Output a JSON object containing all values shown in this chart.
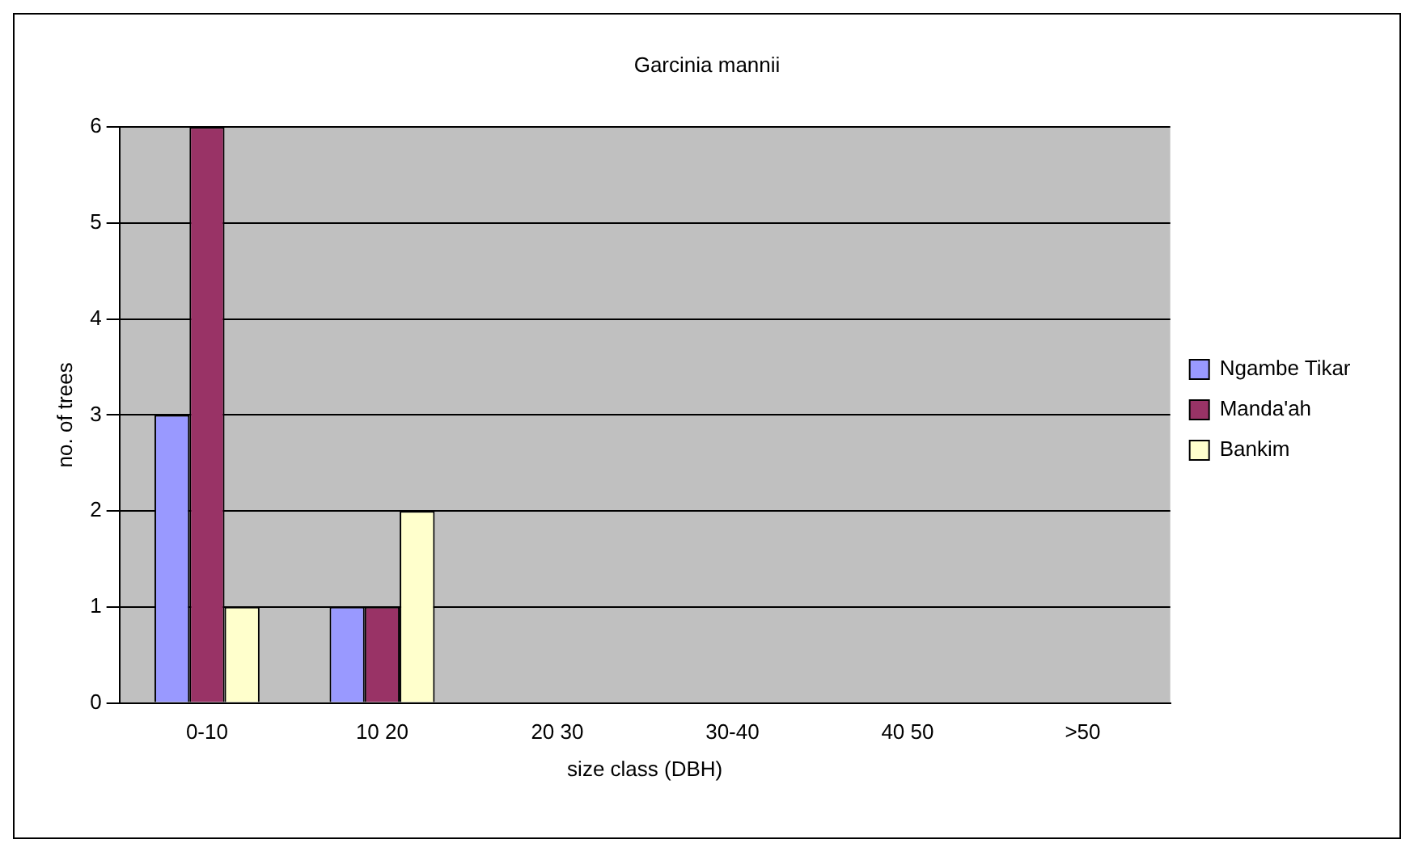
{
  "chart_data": {
    "type": "bar",
    "title": "Garcinia mannii",
    "xlabel": "size class (DBH)",
    "ylabel": "no. of trees",
    "categories": [
      "0-10",
      "10 20",
      "20 30",
      "30-40",
      "40 50",
      ">50"
    ],
    "series": [
      {
        "name": "Ngambe Tikar",
        "color": "#9999ff",
        "values": [
          3,
          1,
          0,
          0,
          0,
          0
        ]
      },
      {
        "name": "Manda'ah",
        "color": "#993366",
        "values": [
          6,
          1,
          0,
          0,
          0,
          0
        ]
      },
      {
        "name": "Bankim",
        "color": "#ffffcc",
        "values": [
          1,
          2,
          0,
          0,
          0,
          0
        ]
      }
    ],
    "ylim": [
      0,
      6
    ],
    "yticks": [
      0,
      1,
      2,
      3,
      4,
      5,
      6
    ],
    "grid": "y",
    "legend": "right"
  }
}
